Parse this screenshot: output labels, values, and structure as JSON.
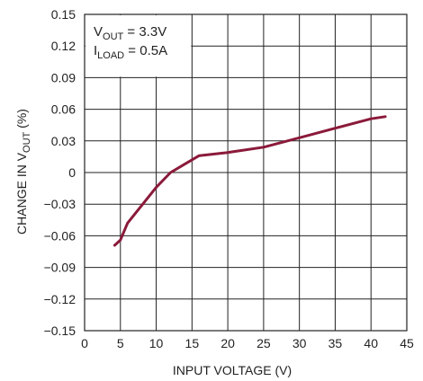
{
  "chart_data": {
    "type": "line",
    "xlabel": "INPUT VOLTAGE (V)",
    "ylabel_parts": {
      "pre": "CHANGE IN V",
      "sub": "OUT",
      "post": " (%)"
    },
    "xlim": [
      0,
      45
    ],
    "ylim": [
      -0.15,
      0.15
    ],
    "x_ticks": [
      "0",
      "5",
      "10",
      "15",
      "20",
      "25",
      "30",
      "35",
      "40",
      "45"
    ],
    "y_ticks": [
      "0.15",
      "0.12",
      "0.09",
      "0.06",
      "0.03",
      "0",
      "-0.03",
      "-0.06",
      "-0.09",
      "-0.12",
      "-0.15"
    ],
    "grid": true,
    "annotation": {
      "line1": {
        "pre": "V",
        "sub": "OUT",
        "post": " = 3.3V"
      },
      "line2": {
        "pre": "I",
        "sub": "LOAD",
        "post": " = 0.5A"
      }
    },
    "series": [
      {
        "color": "#8b1a3a",
        "x": [
          4.2,
          5,
          6,
          8,
          10,
          12,
          14,
          16,
          20,
          25,
          30,
          35,
          40,
          42
        ],
        "y": [
          -0.069,
          -0.064,
          -0.048,
          -0.031,
          -0.014,
          0.0,
          0.008,
          0.016,
          0.019,
          0.024,
          0.033,
          0.042,
          0.051,
          0.053
        ]
      }
    ]
  }
}
